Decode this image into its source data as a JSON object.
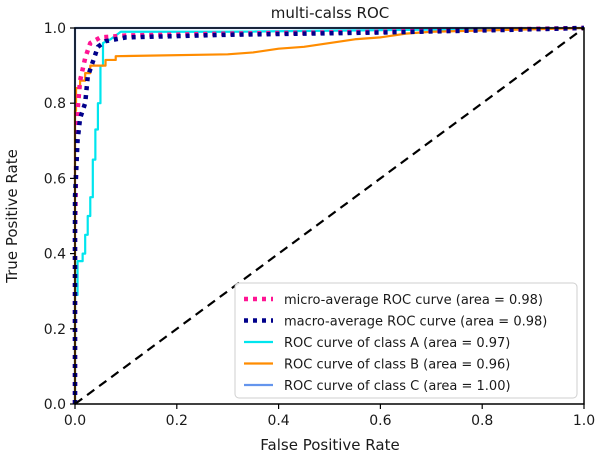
{
  "chart_data": {
    "type": "line",
    "title": "multi-calss ROC",
    "xlabel": "False Positive Rate",
    "ylabel": "True Positive Rate",
    "xlim": [
      0.0,
      1.0
    ],
    "ylim": [
      0.0,
      1.0
    ],
    "xticks": [
      "0.0",
      "0.2",
      "0.4",
      "0.6",
      "0.8",
      "1.0"
    ],
    "yticks": [
      "0.0",
      "0.2",
      "0.4",
      "0.6",
      "0.8",
      "1.0"
    ],
    "grid": false,
    "legend_position": "lower-right",
    "series": [
      {
        "name": "micro-average ROC curve (area = 0.98)",
        "color": "#ff1493",
        "style": "dotted",
        "points": [
          [
            0.0,
            0.0
          ],
          [
            0.0,
            0.45
          ],
          [
            0.002,
            0.62
          ],
          [
            0.005,
            0.78
          ],
          [
            0.01,
            0.86
          ],
          [
            0.02,
            0.92
          ],
          [
            0.03,
            0.96
          ],
          [
            0.05,
            0.975
          ],
          [
            0.1,
            0.98
          ],
          [
            0.3,
            0.985
          ],
          [
            0.6,
            0.99
          ],
          [
            0.8,
            0.995
          ],
          [
            1.0,
            1.0
          ]
        ]
      },
      {
        "name": "macro-average ROC curve (area = 0.98)",
        "color": "#00008b",
        "style": "dotted",
        "points": [
          [
            0.0,
            0.0
          ],
          [
            0.0,
            0.55
          ],
          [
            0.005,
            0.7
          ],
          [
            0.01,
            0.76
          ],
          [
            0.02,
            0.8
          ],
          [
            0.025,
            0.87
          ],
          [
            0.035,
            0.91
          ],
          [
            0.045,
            0.95
          ],
          [
            0.06,
            0.965
          ],
          [
            0.1,
            0.975
          ],
          [
            0.3,
            0.982
          ],
          [
            0.6,
            0.988
          ],
          [
            0.85,
            0.995
          ],
          [
            1.0,
            1.0
          ]
        ]
      },
      {
        "name": "ROC curve of class A (area = 0.97)",
        "color": "#00e5ee",
        "style": "solid",
        "points": [
          [
            0.0,
            0.0
          ],
          [
            0.0,
            0.29
          ],
          [
            0.005,
            0.29
          ],
          [
            0.005,
            0.38
          ],
          [
            0.015,
            0.38
          ],
          [
            0.015,
            0.4
          ],
          [
            0.02,
            0.4
          ],
          [
            0.02,
            0.45
          ],
          [
            0.025,
            0.45
          ],
          [
            0.025,
            0.5
          ],
          [
            0.03,
            0.5
          ],
          [
            0.03,
            0.55
          ],
          [
            0.035,
            0.55
          ],
          [
            0.035,
            0.65
          ],
          [
            0.04,
            0.65
          ],
          [
            0.04,
            0.73
          ],
          [
            0.045,
            0.73
          ],
          [
            0.045,
            0.8
          ],
          [
            0.05,
            0.8
          ],
          [
            0.05,
            0.9
          ],
          [
            0.055,
            0.9
          ],
          [
            0.055,
            0.96
          ],
          [
            0.07,
            0.97
          ],
          [
            0.09,
            0.99
          ],
          [
            0.3,
            0.99
          ],
          [
            1.0,
            1.0
          ]
        ]
      },
      {
        "name": "ROC curve of class B (area = 0.96)",
        "color": "#ff8c00",
        "style": "solid",
        "points": [
          [
            0.0,
            0.0
          ],
          [
            0.0,
            0.78
          ],
          [
            0.002,
            0.78
          ],
          [
            0.002,
            0.84
          ],
          [
            0.01,
            0.84
          ],
          [
            0.01,
            0.86
          ],
          [
            0.02,
            0.86
          ],
          [
            0.02,
            0.88
          ],
          [
            0.03,
            0.88
          ],
          [
            0.03,
            0.9
          ],
          [
            0.06,
            0.9
          ],
          [
            0.06,
            0.915
          ],
          [
            0.08,
            0.915
          ],
          [
            0.08,
            0.925
          ],
          [
            0.3,
            0.93
          ],
          [
            0.35,
            0.935
          ],
          [
            0.4,
            0.945
          ],
          [
            0.45,
            0.95
          ],
          [
            0.5,
            0.96
          ],
          [
            0.55,
            0.97
          ],
          [
            0.6,
            0.975
          ],
          [
            0.65,
            0.985
          ],
          [
            0.7,
            0.99
          ],
          [
            0.85,
            0.995
          ],
          [
            1.0,
            1.0
          ]
        ]
      },
      {
        "name": "ROC curve of class C (area = 1.00)",
        "color": "#6495ed",
        "style": "solid",
        "points": [
          [
            0.0,
            0.0
          ],
          [
            0.0,
            1.0
          ],
          [
            1.0,
            1.0
          ]
        ]
      }
    ],
    "reference_line": {
      "color": "#000000",
      "style": "dashed",
      "points": [
        [
          0.0,
          0.0
        ],
        [
          1.0,
          1.0
        ]
      ]
    }
  }
}
